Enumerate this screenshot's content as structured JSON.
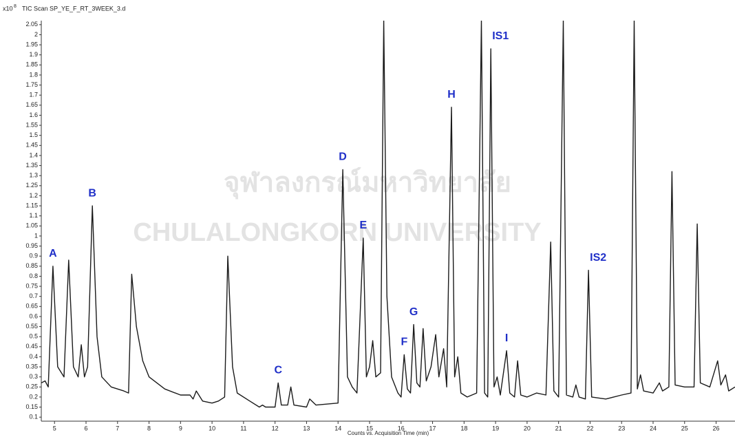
{
  "chart_data": {
    "type": "line",
    "header": "TIC Scan SP_YE_F_RT_3WEEK_3.d",
    "y_multiplier": "x10",
    "y_exponent": "8",
    "xlabel": "Counts vs. Acquisition Time (min)",
    "watermark": [
      "จุฬาลงกรณ์มหาวิทยาลัย",
      "CHULALONGKORN UNIVERSITY"
    ],
    "x": [
      4.58,
      4.7,
      4.8,
      4.95,
      5.1,
      5.3,
      5.45,
      5.6,
      5.75,
      5.85,
      5.95,
      6.05,
      6.2,
      6.35,
      6.5,
      6.8,
      7.2,
      7.35,
      7.45,
      7.6,
      7.8,
      8.0,
      8.5,
      9.0,
      9.3,
      9.4,
      9.5,
      9.7,
      10.0,
      10.2,
      10.4,
      10.5,
      10.65,
      10.8,
      11.2,
      11.5,
      11.6,
      11.7,
      12.0,
      12.1,
      12.2,
      12.4,
      12.5,
      12.6,
      13.0,
      13.1,
      13.3,
      14.0,
      14.15,
      14.3,
      14.45,
      14.6,
      14.8,
      14.9,
      15.0,
      15.1,
      15.2,
      15.35,
      15.45,
      15.55,
      15.7,
      15.9,
      16.0,
      16.1,
      16.2,
      16.3,
      16.4,
      16.5,
      16.6,
      16.7,
      16.8,
      16.95,
      17.1,
      17.2,
      17.35,
      17.45,
      17.6,
      17.7,
      17.8,
      17.9,
      18.1,
      18.4,
      18.55,
      18.65,
      18.75,
      18.85,
      18.95,
      19.05,
      19.15,
      19.35,
      19.45,
      19.6,
      19.7,
      19.8,
      20.0,
      20.3,
      20.6,
      20.75,
      20.85,
      21.0,
      21.15,
      21.25,
      21.45,
      21.55,
      21.65,
      21.85,
      21.95,
      22.05,
      22.5,
      23.0,
      23.3,
      23.4,
      23.5,
      23.6,
      23.7,
      24.0,
      24.2,
      24.3,
      24.5,
      24.6,
      24.7,
      25.0,
      25.3,
      25.4,
      25.5,
      25.8,
      26.05,
      26.15,
      26.3,
      26.4,
      26.6
    ],
    "series": [
      {
        "color": "#1a1a1a",
        "values": [
          0.27,
          0.28,
          0.25,
          0.85,
          0.35,
          0.3,
          0.88,
          0.35,
          0.3,
          0.46,
          0.3,
          0.35,
          1.15,
          0.5,
          0.3,
          0.25,
          0.23,
          0.22,
          0.81,
          0.55,
          0.38,
          0.3,
          0.24,
          0.21,
          0.21,
          0.19,
          0.23,
          0.18,
          0.17,
          0.18,
          0.2,
          0.9,
          0.35,
          0.22,
          0.18,
          0.15,
          0.16,
          0.15,
          0.15,
          0.27,
          0.16,
          0.16,
          0.25,
          0.16,
          0.15,
          0.19,
          0.16,
          0.17,
          1.33,
          0.3,
          0.25,
          0.22,
          0.99,
          0.3,
          0.35,
          0.48,
          0.3,
          0.32,
          2.07,
          0.7,
          0.3,
          0.22,
          0.2,
          0.41,
          0.24,
          0.22,
          0.56,
          0.27,
          0.25,
          0.54,
          0.28,
          0.35,
          0.51,
          0.3,
          0.44,
          0.25,
          1.64,
          0.3,
          0.4,
          0.22,
          0.2,
          0.22,
          2.07,
          0.22,
          0.2,
          1.93,
          0.25,
          0.3,
          0.21,
          0.43,
          0.22,
          0.2,
          0.38,
          0.21,
          0.2,
          0.22,
          0.21,
          0.97,
          0.23,
          0.2,
          2.07,
          0.21,
          0.2,
          0.26,
          0.2,
          0.19,
          0.83,
          0.2,
          0.19,
          0.21,
          0.22,
          2.07,
          0.24,
          0.31,
          0.23,
          0.22,
          0.27,
          0.23,
          0.25,
          1.32,
          0.26,
          0.25,
          0.25,
          1.06,
          0.27,
          0.25,
          0.38,
          0.26,
          0.31,
          0.23,
          0.25
        ]
      }
    ],
    "annotations": [
      {
        "text": "A",
        "x": 4.95,
        "y": 0.85
      },
      {
        "text": "B",
        "x": 6.2,
        "y": 1.15
      },
      {
        "text": "C",
        "x": 12.1,
        "y": 0.27
      },
      {
        "text": "D",
        "x": 14.15,
        "y": 1.33
      },
      {
        "text": "E",
        "x": 14.8,
        "y": 0.99
      },
      {
        "text": "F",
        "x": 16.1,
        "y": 0.41
      },
      {
        "text": "G",
        "x": 16.4,
        "y": 0.56
      },
      {
        "text": "H",
        "x": 17.6,
        "y": 1.64
      },
      {
        "text": "IS1",
        "x": 18.85,
        "y": 1.93
      },
      {
        "text": "I",
        "x": 19.35,
        "y": 0.43
      },
      {
        "text": "IS2",
        "x": 21.95,
        "y": 0.83
      }
    ],
    "annotation_color": "#1f2fc8",
    "xlim": [
      4.58,
      26.6
    ],
    "ylim": [
      0.08,
      2.07
    ],
    "xticks": [
      5,
      6,
      7,
      8,
      9,
      10,
      11,
      12,
      13,
      14,
      15,
      16,
      17,
      18,
      19,
      20,
      21,
      22,
      23,
      24,
      25,
      26
    ],
    "yticks": [
      0.1,
      0.15,
      0.2,
      0.25,
      0.3,
      0.35,
      0.4,
      0.45,
      0.5,
      0.55,
      0.6,
      0.65,
      0.7,
      0.75,
      0.8,
      0.85,
      0.9,
      0.95,
      1,
      1.05,
      1.1,
      1.15,
      1.2,
      1.25,
      1.3,
      1.35,
      1.4,
      1.45,
      1.5,
      1.55,
      1.6,
      1.65,
      1.7,
      1.75,
      1.8,
      1.85,
      1.9,
      1.95,
      2,
      2.05
    ]
  }
}
